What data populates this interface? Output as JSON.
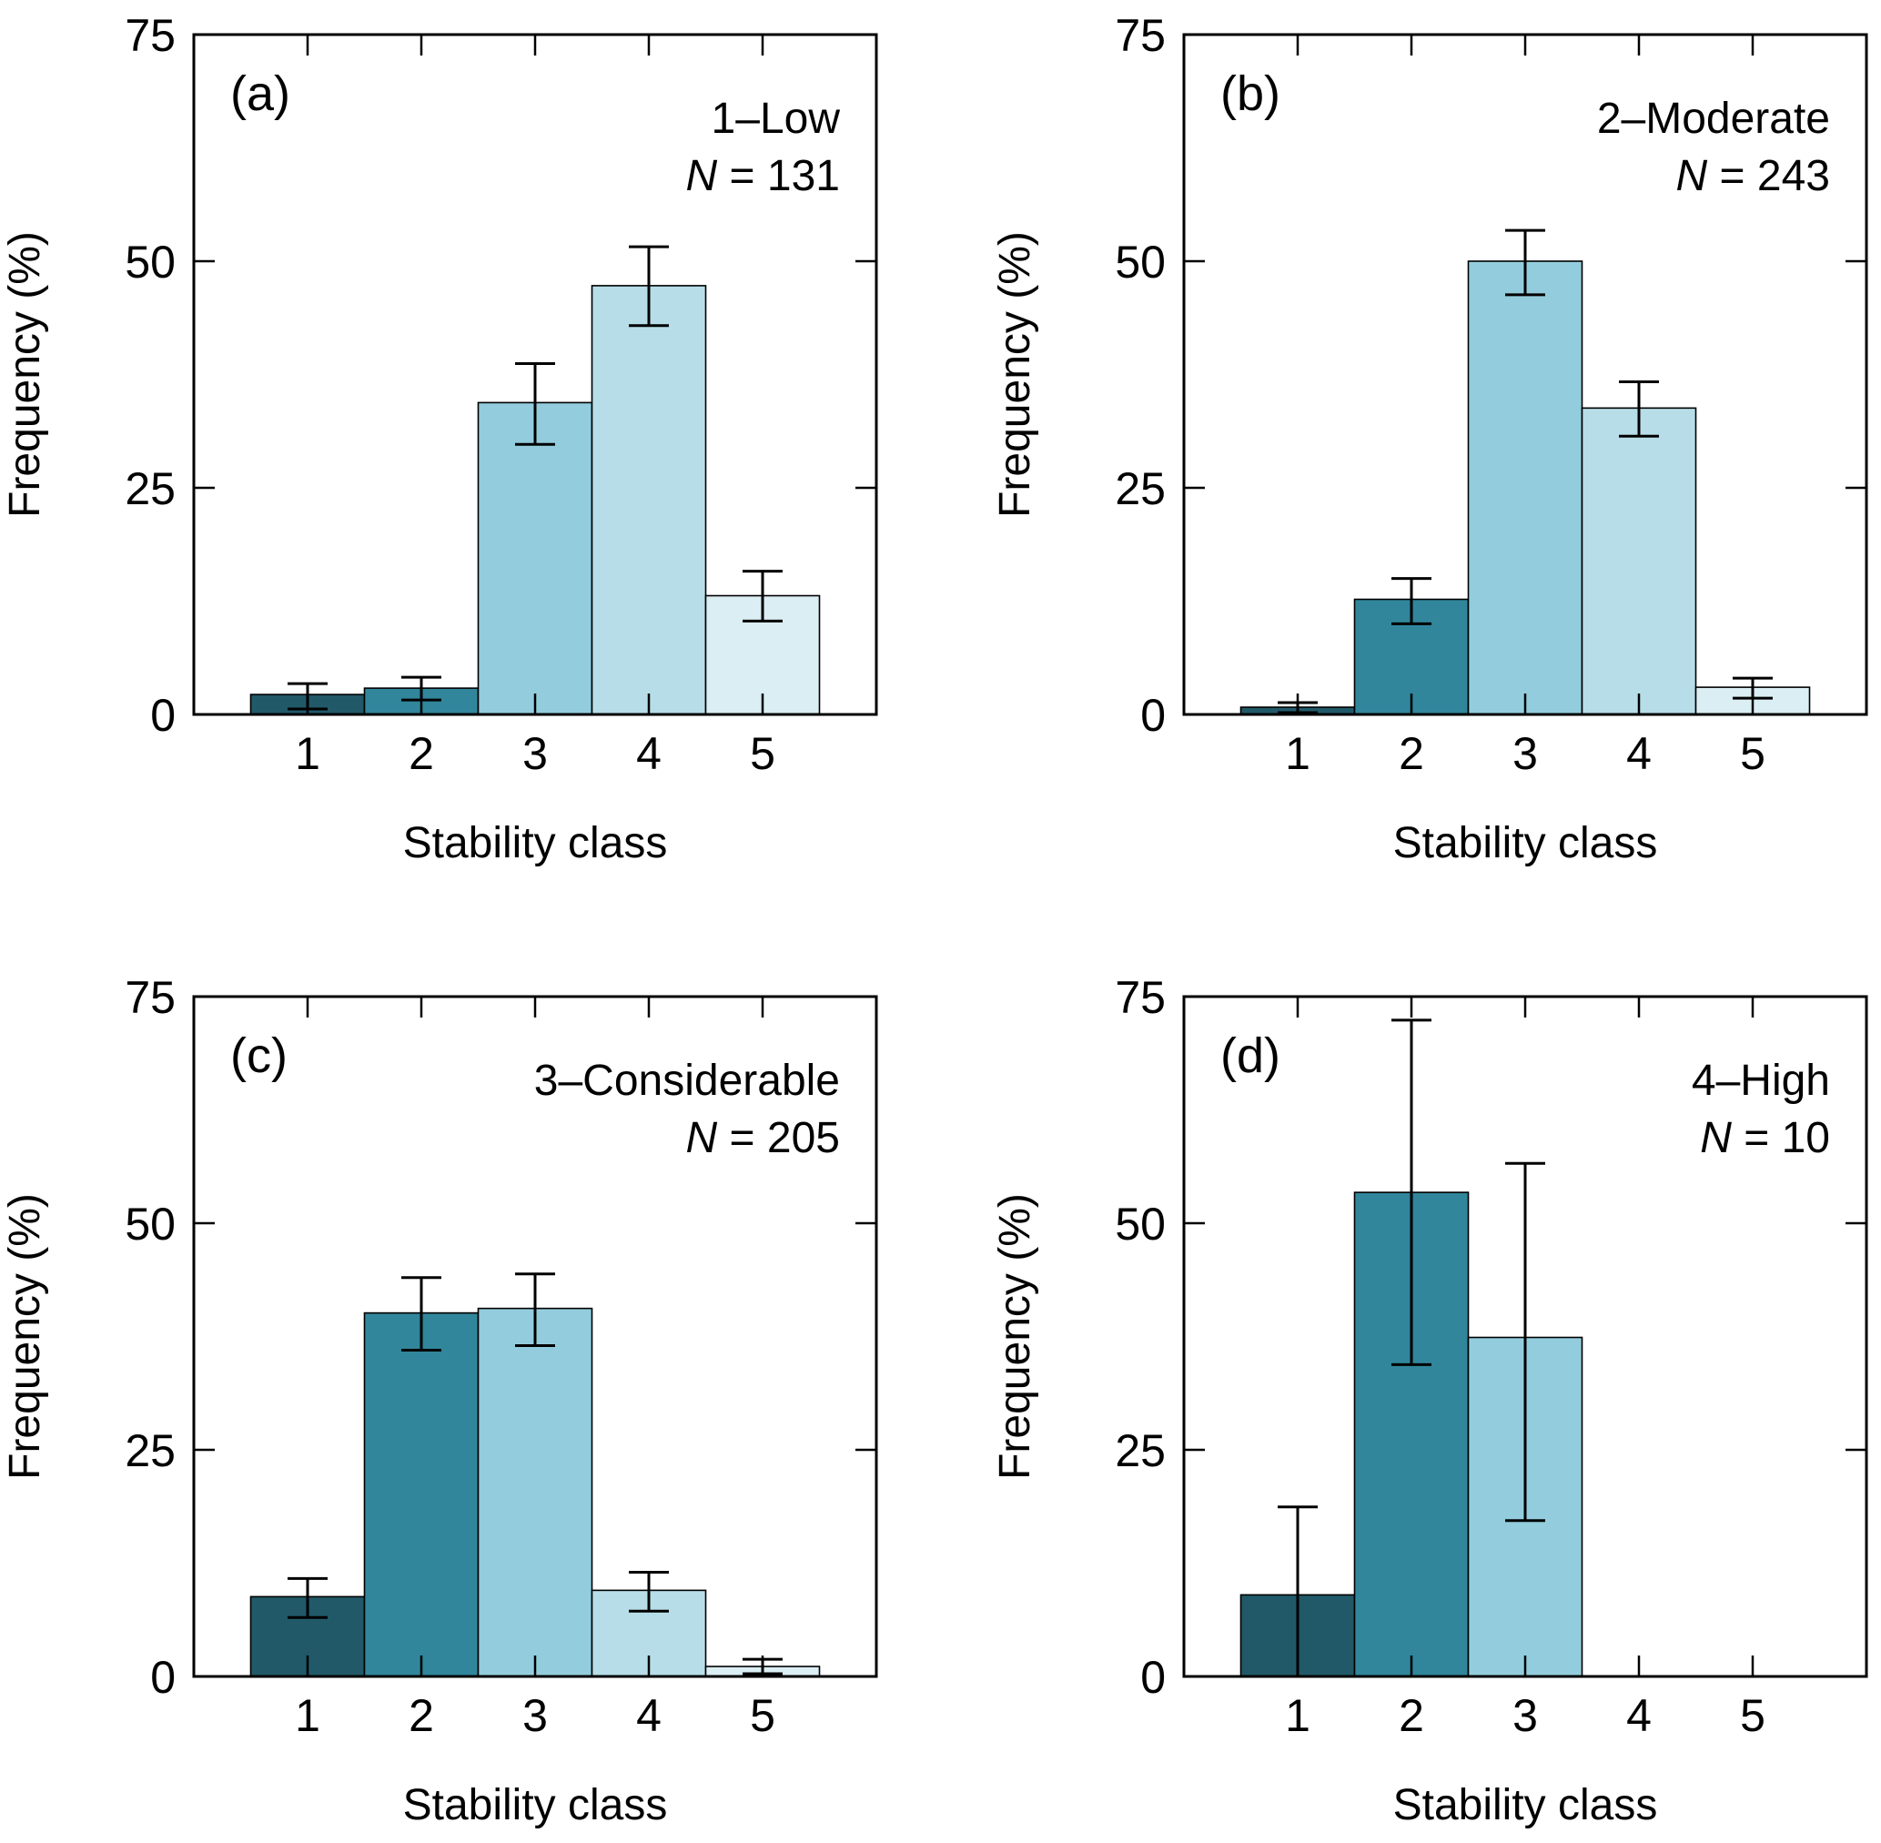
{
  "figure": {
    "class_colors": {
      "1": "#215968",
      "2": "#31869B",
      "3": "#93CDDD",
      "4": "#B7DEE8",
      "5": "#DAEEF3"
    }
  },
  "chart_data": [
    {
      "type": "bar",
      "panel_label": "(a)",
      "title": "1–Low",
      "n_label": "N",
      "n_value": "= 131",
      "xlabel": "Stability class",
      "ylabel": "Frequency (%)",
      "categories": [
        "1",
        "2",
        "3",
        "4",
        "5"
      ],
      "values": [
        2.2,
        2.9,
        34.4,
        47.3,
        13.1
      ],
      "error_upper": [
        3.4,
        4.1,
        38.7,
        51.6,
        15.8
      ],
      "error_lower": [
        0.6,
        1.6,
        29.8,
        42.9,
        10.3
      ],
      "ylim": [
        0,
        75
      ],
      "yticks": [
        "0",
        "25",
        "50",
        "75"
      ],
      "legend_position": "top-right"
    },
    {
      "type": "bar",
      "panel_label": "(b)",
      "title": "2–Moderate",
      "n_label": "N",
      "n_value": "= 243",
      "xlabel": "Stability class",
      "ylabel": "Frequency (%)",
      "categories": [
        "1",
        "2",
        "3",
        "4",
        "5"
      ],
      "values": [
        0.8,
        12.7,
        50.0,
        33.8,
        3.0
      ],
      "error_upper": [
        1.3,
        15.0,
        53.4,
        36.7,
        4.0
      ],
      "error_lower": [
        0.2,
        10.0,
        46.3,
        30.7,
        1.8
      ],
      "ylim": [
        0,
        75
      ],
      "yticks": [
        "0",
        "25",
        "50",
        "75"
      ],
      "legend_position": "top-right"
    },
    {
      "type": "bar",
      "panel_label": "(c)",
      "title": "3–Considerable",
      "n_label": "N",
      "n_value": "= 205",
      "xlabel": "Stability class",
      "ylabel": "Frequency (%)",
      "categories": [
        "1",
        "2",
        "3",
        "4",
        "5"
      ],
      "values": [
        8.8,
        40.1,
        40.6,
        9.5,
        1.1
      ],
      "error_upper": [
        10.8,
        44.0,
        44.4,
        11.5,
        1.9
      ],
      "error_lower": [
        6.5,
        36.0,
        36.5,
        7.2,
        0.3
      ],
      "ylim": [
        0,
        75
      ],
      "yticks": [
        "0",
        "25",
        "50",
        "75"
      ],
      "legend_position": "top-right"
    },
    {
      "type": "bar",
      "panel_label": "(d)",
      "title": "4–High",
      "n_label": "N",
      "n_value": "= 10",
      "xlabel": "Stability class",
      "ylabel": "Frequency (%)",
      "categories": [
        "1",
        "2",
        "3",
        "4",
        "5"
      ],
      "values": [
        9.0,
        53.4,
        37.4,
        0,
        0
      ],
      "error_upper": [
        18.7,
        72.4,
        56.6,
        null,
        null
      ],
      "error_lower": [
        0.0,
        34.4,
        17.2,
        null,
        null
      ],
      "ylim": [
        0,
        75
      ],
      "yticks": [
        "0",
        "25",
        "50",
        "75"
      ],
      "legend_position": "top-right"
    }
  ]
}
